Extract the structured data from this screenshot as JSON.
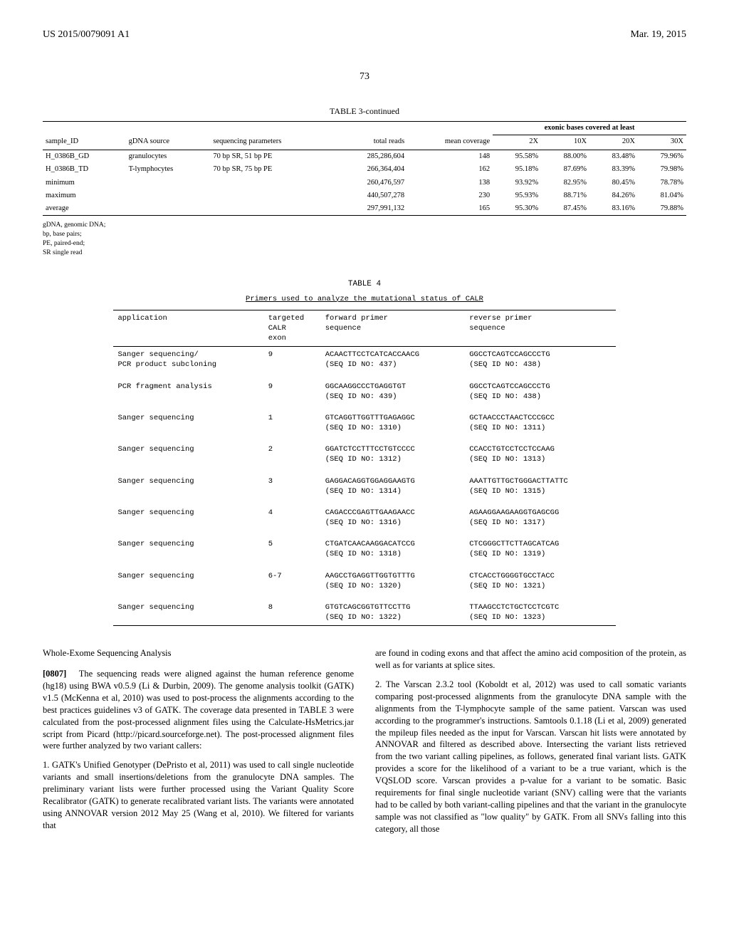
{
  "header": {
    "left": "US 2015/0079091 A1",
    "right": "Mar. 19, 2015"
  },
  "page_number": "73",
  "table3": {
    "title": "TABLE 3-continued",
    "grouped_header": "exonic bases covered at least",
    "cols": [
      "sample_ID",
      "gDNA source",
      "sequencing parameters",
      "total reads",
      "mean coverage",
      "2X",
      "10X",
      "20X",
      "30X"
    ],
    "rows": [
      [
        "H_0386B_GD",
        "granulocytes",
        "70 bp SR, 51 bp PE",
        "285,286,604",
        "148",
        "95.58%",
        "88.00%",
        "83.48%",
        "79.96%"
      ],
      [
        "H_0386B_TD",
        "T-lymphocytes",
        "70 bp SR, 75 bp PE",
        "266,364,404",
        "162",
        "95.18%",
        "87.69%",
        "83.39%",
        "79.98%"
      ],
      [
        "minimum",
        "",
        "",
        "260,476,597",
        "138",
        "93.92%",
        "82.95%",
        "80.45%",
        "78.78%"
      ],
      [
        "maximum",
        "",
        "",
        "440,507,278",
        "230",
        "95.93%",
        "88.71%",
        "84.26%",
        "81.04%"
      ],
      [
        "average",
        "",
        "",
        "297,991,132",
        "165",
        "95.30%",
        "87.45%",
        "83.16%",
        "79.88%"
      ]
    ],
    "footnotes": [
      "gDNA, genomic DNA;",
      "bp, base pairs;",
      "PE, paired-end;",
      "SR single read"
    ]
  },
  "table4": {
    "title": "TABLE 4",
    "subtitle": "Primers used to analyze the mutational status of CALR",
    "cols": [
      "application",
      "targeted CALR exon",
      "forward primer sequence",
      "reverse primer sequence"
    ],
    "rows": [
      {
        "app": "Sanger sequencing/\nPCR product subcloning",
        "exon": "9",
        "fwd": "ACAACTTCCTCATCACCAACG",
        "fwd_id": "(SEQ ID NO: 437)",
        "rev": "GGCCTCAGTCCAGCCCTG",
        "rev_id": "(SEQ ID NO: 438)"
      },
      {
        "app": "PCR fragment analysis",
        "exon": "9",
        "fwd": "GGCAAGGCCCTGAGGTGT",
        "fwd_id": "(SEQ ID NO: 439)",
        "rev": "GGCCTCAGTCCAGCCCTG",
        "rev_id": "(SEQ ID NO: 438)"
      },
      {
        "app": "Sanger sequencing",
        "exon": "1",
        "fwd": "GTCAGGTTGGTTTGAGAGGC",
        "fwd_id": "(SEQ ID NO: 1310)",
        "rev": "GCTAACCCTAACTCCCGCC",
        "rev_id": "(SEQ ID NO: 1311)"
      },
      {
        "app": "Sanger sequencing",
        "exon": "2",
        "fwd": "GGATCTCCTTTCCTGTCCCC",
        "fwd_id": "(SEQ ID NO: 1312)",
        "rev": "CCACCTGTCCTCCTCCAAG",
        "rev_id": "(SEQ ID NO: 1313)"
      },
      {
        "app": "Sanger sequencing",
        "exon": "3",
        "fwd": "GAGGACAGGTGGAGGAAGTG",
        "fwd_id": "(SEQ ID NO: 1314)",
        "rev": "AAATTGTTGCTGGGACTTATTC",
        "rev_id": "(SEQ ID NO: 1315)"
      },
      {
        "app": "Sanger sequencing",
        "exon": "4",
        "fwd": "CAGACCCGAGTTGAAGAACC",
        "fwd_id": "(SEQ ID NO: 1316)",
        "rev": "AGAAGGAAGAAGGTGAGCGG",
        "rev_id": "(SEQ ID NO: 1317)"
      },
      {
        "app": "Sanger sequencing",
        "exon": "5",
        "fwd": "CTGATCAACAAGGACATCCG",
        "fwd_id": "(SEQ ID NO: 1318)",
        "rev": "CTCGGGCTTCTTAGCATCAG",
        "rev_id": "(SEQ ID NO: 1319)"
      },
      {
        "app": "Sanger sequencing",
        "exon": "6-7",
        "fwd": "AAGCCTGAGGTTGGTGTTTG",
        "fwd_id": "(SEQ ID NO: 1320)",
        "rev": "CTCACCTGGGGTGCCTACC",
        "rev_id": "(SEQ ID NO: 1321)"
      },
      {
        "app": "Sanger sequencing",
        "exon": "8",
        "fwd": "GTGTCAGCGGTGTTCCTTG",
        "fwd_id": "(SEQ ID NO: 1322)",
        "rev": "TTAAGCCTCTGCTCCTCGTC",
        "rev_id": "(SEQ ID NO: 1323)"
      }
    ]
  },
  "body": {
    "section_heading": "Whole-Exome Sequencing Analysis",
    "para1_num": "[0807]",
    "para1": "The sequencing reads were aligned against the human reference genome (hg18) using BWA v0.5.9 (Li & Durbin, 2009). The genome analysis toolkit (GATK) v1.5 (McKenna et al, 2010) was used to post-process the alignments according to the best practices guidelines v3 of GATK. The coverage data presented in TABLE 3 were calculated from the post-processed alignment files using the Calculate-HsMetrics.jar script from Picard (http://picard.sourceforge.net). The post-processed alignment files were further analyzed by two variant callers:",
    "para2": "1. GATK's Unified Genotyper (DePristo et al, 2011) was used to call single nucleotide variants and small insertions/deletions from the granulocyte DNA samples. The preliminary variant lists were further processed using the Variant Quality Score Recalibrator (GATK) to generate recalibrated variant lists. The variants were annotated using ANNOVAR version 2012 May 25 (Wang et al, 2010). We filtered for variants that",
    "para3": "are found in coding exons and that affect the amino acid composition of the protein, as well as for variants at splice sites.",
    "para4": "2. The Varscan 2.3.2 tool (Koboldt et al, 2012) was used to call somatic variants comparing post-processed alignments from the granulocyte DNA sample with the alignments from the T-lymphocyte sample of the same patient. Varscan was used according to the programmer's instructions. Samtools 0.1.18 (Li et al, 2009) generated the mpileup files needed as the input for Varscan. Varscan hit lists were annotated by ANNOVAR and filtered as described above. Intersecting the variant lists retrieved from the two variant calling pipelines, as follows, generated final variant lists. GATK provides a score for the likelihood of a variant to be a true variant, which is the VQSLOD score. Varscan provides a p-value for a variant to be somatic. Basic requirements for final single nucleotide variant (SNV) calling were that the variants had to be called by both variant-calling pipelines and that the variant in the granulocyte sample was not classified as \"low quality\" by GATK. From all SNVs falling into this category, all those"
  }
}
